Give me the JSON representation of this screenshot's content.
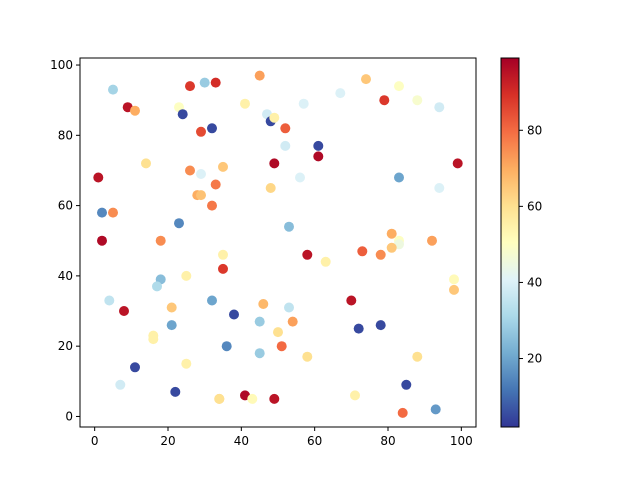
{
  "chart_data": {
    "type": "scatter",
    "title": "",
    "xlabel": "",
    "ylabel": "",
    "xlim": [
      -4,
      104
    ],
    "ylim": [
      -3,
      102
    ],
    "x_ticks": [
      0,
      20,
      40,
      60,
      80,
      100
    ],
    "y_ticks": [
      0,
      20,
      40,
      60,
      80,
      100
    ],
    "x_tick_labels": [
      "0",
      "20",
      "40",
      "60",
      "80",
      "100"
    ],
    "y_tick_labels": [
      "0",
      "20",
      "40",
      "60",
      "80",
      "100"
    ],
    "grid": false,
    "colormap": "RdYlBu_r",
    "colorbar": {
      "range": [
        2,
        99
      ],
      "ticks": [
        20,
        40,
        60,
        80
      ],
      "tick_labels": [
        "20",
        "40",
        "60",
        "80"
      ]
    },
    "points": [
      {
        "x": 45,
        "y": 97,
        "c": 72
      },
      {
        "x": 74,
        "y": 96,
        "c": 65
      },
      {
        "x": 30,
        "y": 95,
        "c": 28
      },
      {
        "x": 33,
        "y": 95,
        "c": 90
      },
      {
        "x": 26,
        "y": 94,
        "c": 88
      },
      {
        "x": 83,
        "y": 94,
        "c": 50
      },
      {
        "x": 5,
        "y": 93,
        "c": 30
      },
      {
        "x": 67,
        "y": 92,
        "c": 40
      },
      {
        "x": 79,
        "y": 90,
        "c": 88
      },
      {
        "x": 88,
        "y": 90,
        "c": 48
      },
      {
        "x": 41,
        "y": 89,
        "c": 55
      },
      {
        "x": 57,
        "y": 89,
        "c": 40
      },
      {
        "x": 94,
        "y": 88,
        "c": 38
      },
      {
        "x": 9,
        "y": 88,
        "c": 95
      },
      {
        "x": 11,
        "y": 87,
        "c": 70
      },
      {
        "x": 23,
        "y": 88,
        "c": 50
      },
      {
        "x": 24,
        "y": 86,
        "c": 5
      },
      {
        "x": 47,
        "y": 86,
        "c": 38
      },
      {
        "x": 48,
        "y": 84,
        "c": 5
      },
      {
        "x": 49,
        "y": 85,
        "c": 55
      },
      {
        "x": 32,
        "y": 82,
        "c": 5
      },
      {
        "x": 29,
        "y": 81,
        "c": 85
      },
      {
        "x": 52,
        "y": 82,
        "c": 82
      },
      {
        "x": 52,
        "y": 77,
        "c": 38
      },
      {
        "x": 61,
        "y": 77,
        "c": 5
      },
      {
        "x": 61,
        "y": 74,
        "c": 97
      },
      {
        "x": 49,
        "y": 72,
        "c": 97
      },
      {
        "x": 14,
        "y": 72,
        "c": 60
      },
      {
        "x": 99,
        "y": 72,
        "c": 95
      },
      {
        "x": 26,
        "y": 70,
        "c": 75
      },
      {
        "x": 29,
        "y": 69,
        "c": 40
      },
      {
        "x": 35,
        "y": 71,
        "c": 65
      },
      {
        "x": 1,
        "y": 68,
        "c": 95
      },
      {
        "x": 56,
        "y": 68,
        "c": 40
      },
      {
        "x": 83,
        "y": 68,
        "c": 20
      },
      {
        "x": 33,
        "y": 66,
        "c": 78
      },
      {
        "x": 48,
        "y": 65,
        "c": 62
      },
      {
        "x": 94,
        "y": 65,
        "c": 40
      },
      {
        "x": 28,
        "y": 63,
        "c": 70
      },
      {
        "x": 29,
        "y": 63,
        "c": 66
      },
      {
        "x": 32,
        "y": 60,
        "c": 78
      },
      {
        "x": 2,
        "y": 58,
        "c": 15
      },
      {
        "x": 5,
        "y": 58,
        "c": 75
      },
      {
        "x": 23,
        "y": 55,
        "c": 15
      },
      {
        "x": 53,
        "y": 54,
        "c": 25
      },
      {
        "x": 81,
        "y": 52,
        "c": 70
      },
      {
        "x": 83,
        "y": 50,
        "c": 50
      },
      {
        "x": 83,
        "y": 49,
        "c": 45
      },
      {
        "x": 81,
        "y": 48,
        "c": 65
      },
      {
        "x": 92,
        "y": 50,
        "c": 72
      },
      {
        "x": 2,
        "y": 50,
        "c": 97
      },
      {
        "x": 18,
        "y": 50,
        "c": 75
      },
      {
        "x": 35,
        "y": 46,
        "c": 55
      },
      {
        "x": 58,
        "y": 46,
        "c": 95
      },
      {
        "x": 73,
        "y": 47,
        "c": 82
      },
      {
        "x": 78,
        "y": 46,
        "c": 75
      },
      {
        "x": 63,
        "y": 44,
        "c": 55
      },
      {
        "x": 35,
        "y": 42,
        "c": 88
      },
      {
        "x": 25,
        "y": 40,
        "c": 55
      },
      {
        "x": 18,
        "y": 39,
        "c": 25
      },
      {
        "x": 17,
        "y": 37,
        "c": 32
      },
      {
        "x": 98,
        "y": 39,
        "c": 52
      },
      {
        "x": 98,
        "y": 36,
        "c": 65
      },
      {
        "x": 4,
        "y": 33,
        "c": 35
      },
      {
        "x": 32,
        "y": 33,
        "c": 20
      },
      {
        "x": 70,
        "y": 33,
        "c": 95
      },
      {
        "x": 46,
        "y": 32,
        "c": 68
      },
      {
        "x": 21,
        "y": 31,
        "c": 65
      },
      {
        "x": 53,
        "y": 31,
        "c": 35
      },
      {
        "x": 8,
        "y": 30,
        "c": 95
      },
      {
        "x": 38,
        "y": 29,
        "c": 5
      },
      {
        "x": 45,
        "y": 27,
        "c": 28
      },
      {
        "x": 54,
        "y": 27,
        "c": 72
      },
      {
        "x": 21,
        "y": 26,
        "c": 20
      },
      {
        "x": 72,
        "y": 25,
        "c": 5
      },
      {
        "x": 78,
        "y": 26,
        "c": 5
      },
      {
        "x": 50,
        "y": 24,
        "c": 60
      },
      {
        "x": 16,
        "y": 23,
        "c": 55
      },
      {
        "x": 16,
        "y": 22,
        "c": 55
      },
      {
        "x": 36,
        "y": 20,
        "c": 15
      },
      {
        "x": 51,
        "y": 20,
        "c": 80
      },
      {
        "x": 45,
        "y": 18,
        "c": 28
      },
      {
        "x": 58,
        "y": 17,
        "c": 60
      },
      {
        "x": 88,
        "y": 17,
        "c": 60
      },
      {
        "x": 25,
        "y": 15,
        "c": 55
      },
      {
        "x": 11,
        "y": 14,
        "c": 5
      },
      {
        "x": 7,
        "y": 9,
        "c": 38
      },
      {
        "x": 85,
        "y": 9,
        "c": 5
      },
      {
        "x": 22,
        "y": 7,
        "c": 5
      },
      {
        "x": 41,
        "y": 6,
        "c": 97
      },
      {
        "x": 71,
        "y": 6,
        "c": 55
      },
      {
        "x": 34,
        "y": 5,
        "c": 65
      },
      {
        "x": 34,
        "y": 5,
        "c": 60
      },
      {
        "x": 43,
        "y": 5,
        "c": 52
      },
      {
        "x": 49,
        "y": 5,
        "c": 95
      },
      {
        "x": 84,
        "y": 1,
        "c": 80
      },
      {
        "x": 93,
        "y": 2,
        "c": 18
      }
    ]
  }
}
